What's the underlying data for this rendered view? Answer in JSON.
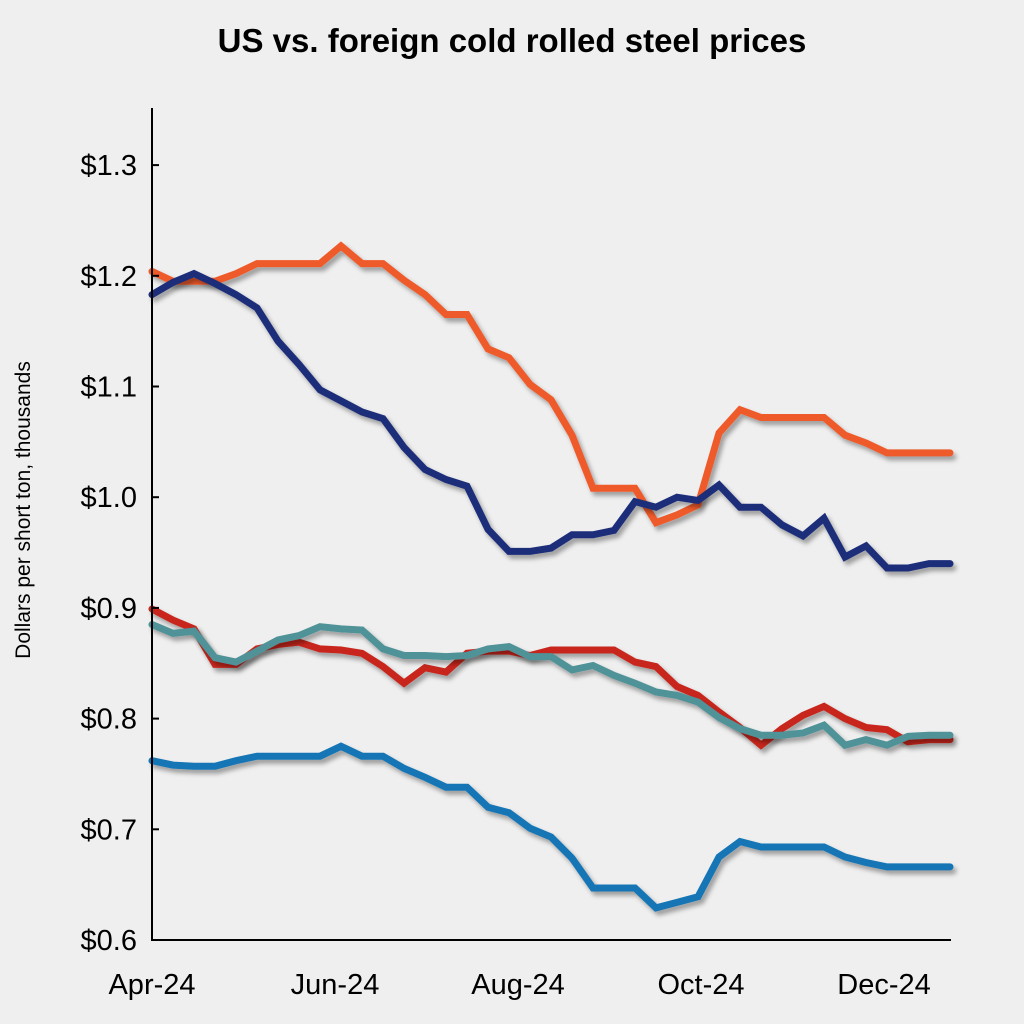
{
  "chart_data": {
    "type": "line",
    "title": "US vs. foreign cold rolled steel prices",
    "xlabel": "",
    "ylabel": "Dollars per short ton, thousands",
    "ylim": [
      0.6,
      1.35
    ],
    "y_ticks": [
      {
        "value": 0.6,
        "label": "$0.6"
      },
      {
        "value": 0.7,
        "label": "$0.7"
      },
      {
        "value": 0.8,
        "label": "$0.8"
      },
      {
        "value": 0.9,
        "label": "$0.9"
      },
      {
        "value": 1.0,
        "label": "$1.0"
      },
      {
        "value": 1.1,
        "label": "$1.1"
      },
      {
        "value": 1.2,
        "label": "$1.2"
      },
      {
        "value": 1.3,
        "label": "$1.3"
      }
    ],
    "x_ticks": [
      {
        "date": "2024-04-01",
        "label": "Apr-24"
      },
      {
        "date": "2024-06-01",
        "label": "Jun-24"
      },
      {
        "date": "2024-08-01",
        "label": "Aug-24"
      },
      {
        "date": "2024-10-01",
        "label": "Oct-24"
      },
      {
        "date": "2024-12-01",
        "label": "Dec-24"
      }
    ],
    "x_start": "2024-04-01",
    "x_step_days": 7,
    "grid": false,
    "legend": "none",
    "series": [
      {
        "color": "#ef5a2a",
        "values": [
          1.204,
          1.195,
          1.195,
          1.195,
          1.202,
          1.211,
          1.211,
          1.211,
          1.211,
          1.227,
          1.211,
          1.211,
          1.196,
          1.183,
          1.165,
          1.165,
          1.134,
          1.126,
          1.102,
          1.088,
          1.056,
          1.008,
          1.008,
          1.008,
          0.977,
          0.984,
          0.993,
          1.058,
          1.079,
          1.072,
          1.072,
          1.072,
          1.072,
          1.056,
          1.049,
          1.04,
          1.04,
          1.04,
          1.04
        ]
      },
      {
        "color": "#1f2f7a",
        "values": [
          1.183,
          1.194,
          1.202,
          1.193,
          1.183,
          1.171,
          1.141,
          1.12,
          1.097,
          1.087,
          1.077,
          1.071,
          1.045,
          1.025,
          1.016,
          1.01,
          0.971,
          0.951,
          0.951,
          0.954,
          0.966,
          0.966,
          0.97,
          0.996,
          0.991,
          1.0,
          0.997,
          1.011,
          0.991,
          0.991,
          0.975,
          0.965,
          0.981,
          0.946,
          0.956,
          0.936,
          0.936,
          0.94,
          0.94
        ]
      },
      {
        "color": "#c8281f",
        "values": [
          0.899,
          0.889,
          0.881,
          0.849,
          0.849,
          0.863,
          0.867,
          0.869,
          0.863,
          0.862,
          0.859,
          0.847,
          0.832,
          0.846,
          0.842,
          0.859,
          0.861,
          0.861,
          0.857,
          0.862,
          0.862,
          0.862,
          0.862,
          0.851,
          0.847,
          0.829,
          0.821,
          0.806,
          0.792,
          0.776,
          0.791,
          0.803,
          0.811,
          0.8,
          0.792,
          0.79,
          0.779,
          0.781,
          0.781
        ]
      },
      {
        "color": "#4f9297",
        "values": [
          0.885,
          0.877,
          0.879,
          0.855,
          0.851,
          0.861,
          0.871,
          0.875,
          0.883,
          0.881,
          0.88,
          0.863,
          0.857,
          0.857,
          0.856,
          0.857,
          0.863,
          0.865,
          0.856,
          0.856,
          0.844,
          0.848,
          0.839,
          0.832,
          0.824,
          0.821,
          0.815,
          0.801,
          0.791,
          0.785,
          0.785,
          0.787,
          0.794,
          0.776,
          0.781,
          0.776,
          0.784,
          0.785,
          0.785
        ]
      },
      {
        "color": "#1274b5",
        "values": [
          0.762,
          0.758,
          0.757,
          0.757,
          0.762,
          0.766,
          0.766,
          0.766,
          0.766,
          0.775,
          0.766,
          0.766,
          0.755,
          0.747,
          0.738,
          0.738,
          0.72,
          0.715,
          0.701,
          0.693,
          0.674,
          0.647,
          0.647,
          0.647,
          0.629,
          0.634,
          0.639,
          0.675,
          0.689,
          0.684,
          0.684,
          0.684,
          0.684,
          0.675,
          0.67,
          0.666,
          0.666,
          0.666,
          0.666
        ]
      }
    ]
  }
}
